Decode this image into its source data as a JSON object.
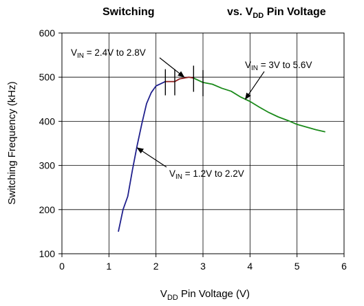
{
  "chart_data": {
    "type": "line",
    "title": {
      "left": "Switching",
      "right_prefix": "vs. V",
      "right_sub": "DD",
      "right_suffix": " Pin Voltage"
    },
    "xlabel": {
      "prefix": "V",
      "sub": "DD",
      "suffix": " Pin Voltage (V)"
    },
    "ylabel": "Switching Frequency (kHz)",
    "xlim": [
      0,
      6
    ],
    "ylim": [
      100,
      600
    ],
    "xticks": [
      "0",
      "1",
      "2",
      "3",
      "4",
      "5",
      "6"
    ],
    "yticks": [
      "100",
      "200",
      "300",
      "400",
      "500",
      "600"
    ],
    "grid": true,
    "series": [
      {
        "color": "#1f1f8c",
        "x": [
          1.2,
          1.3,
          1.4,
          1.5,
          1.6,
          1.7,
          1.8,
          1.9,
          2.0,
          2.1,
          2.2
        ],
        "y": [
          150,
          200,
          230,
          290,
          345,
          395,
          440,
          465,
          480,
          485,
          490
        ]
      },
      {
        "color": "#8b1a1a",
        "x": [
          2.2,
          2.4,
          2.5,
          2.6,
          2.7,
          2.8
        ],
        "y": [
          490,
          490,
          496,
          498,
          500,
          498
        ]
      },
      {
        "color": "#1a8a1a",
        "x": [
          2.8,
          3.0,
          3.2,
          3.4,
          3.6,
          3.8,
          4.0,
          4.2,
          4.4,
          4.6,
          4.8,
          5.0,
          5.2,
          5.4,
          5.6
        ],
        "y": [
          498,
          488,
          484,
          475,
          468,
          455,
          445,
          432,
          420,
          410,
          402,
          393,
          387,
          381,
          376
        ]
      }
    ],
    "boundary_markers_x": [
      2.2,
      2.4,
      2.8,
      3.0
    ],
    "annotations": [
      {
        "prefix": "V",
        "sub": "IN",
        "suffix": " = 2.4V to 2.8V",
        "arrow_to": [
          2.6,
          500
        ]
      },
      {
        "prefix": "V",
        "sub": "IN",
        "suffix": " = 3V to 5.6V",
        "arrow_to": [
          3.9,
          450
        ]
      },
      {
        "prefix": "V",
        "sub": "IN",
        "suffix": " = 1.2V to 2.2V",
        "arrow_to": [
          1.6,
          340
        ]
      }
    ]
  }
}
